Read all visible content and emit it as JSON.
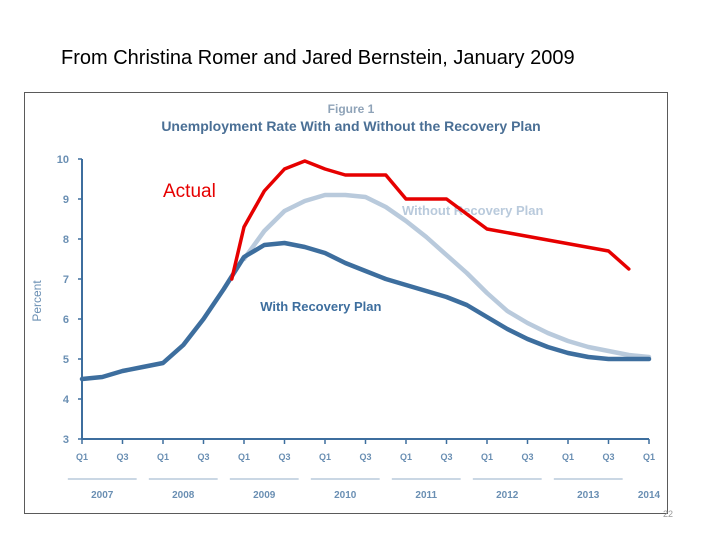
{
  "slide": {
    "title": "From Christina Romer and Jared Bernstein, January 2009",
    "page_number": "22"
  },
  "chart_data": {
    "type": "line",
    "figure_label": "Figure 1",
    "title": "Unemployment Rate With and Without the Recovery Plan",
    "ylabel": "Percent",
    "xlabel": "",
    "ylim": [
      3,
      10
    ],
    "yticks": [
      3,
      4,
      5,
      6,
      7,
      8,
      9,
      10
    ],
    "xlim": [
      2007.0,
      2014.0
    ],
    "quarter_ticks": [
      {
        "x": 2007.0,
        "label": "Q1"
      },
      {
        "x": 2007.5,
        "label": "Q3"
      },
      {
        "x": 2008.0,
        "label": "Q1"
      },
      {
        "x": 2008.5,
        "label": "Q3"
      },
      {
        "x": 2009.0,
        "label": "Q1"
      },
      {
        "x": 2009.5,
        "label": "Q3"
      },
      {
        "x": 2010.0,
        "label": "Q1"
      },
      {
        "x": 2010.5,
        "label": "Q3"
      },
      {
        "x": 2011.0,
        "label": "Q1"
      },
      {
        "x": 2011.5,
        "label": "Q3"
      },
      {
        "x": 2012.0,
        "label": "Q1"
      },
      {
        "x": 2012.5,
        "label": "Q3"
      },
      {
        "x": 2013.0,
        "label": "Q1"
      },
      {
        "x": 2013.5,
        "label": "Q3"
      },
      {
        "x": 2014.0,
        "label": "Q1"
      }
    ],
    "year_labels": [
      {
        "x": 2007.25,
        "label": "2007"
      },
      {
        "x": 2008.25,
        "label": "2008"
      },
      {
        "x": 2009.25,
        "label": "2009"
      },
      {
        "x": 2010.25,
        "label": "2010"
      },
      {
        "x": 2011.25,
        "label": "2011"
      },
      {
        "x": 2012.25,
        "label": "2012"
      },
      {
        "x": 2013.25,
        "label": "2013"
      },
      {
        "x": 2014.0,
        "label": "2014"
      }
    ],
    "series": [
      {
        "name": "Without Recovery Plan",
        "color": "#b9cadc",
        "label_text": "Without Recovery Plan",
        "label_at": {
          "x": 2010.95,
          "y": 8.6
        },
        "points": [
          [
            2009.0,
            7.5
          ],
          [
            2009.25,
            8.2
          ],
          [
            2009.5,
            8.7
          ],
          [
            2009.75,
            8.95
          ],
          [
            2010.0,
            9.1
          ],
          [
            2010.25,
            9.1
          ],
          [
            2010.5,
            9.05
          ],
          [
            2010.75,
            8.8
          ],
          [
            2011.0,
            8.45
          ],
          [
            2011.25,
            8.05
          ],
          [
            2011.5,
            7.6
          ],
          [
            2011.75,
            7.15
          ],
          [
            2012.0,
            6.65
          ],
          [
            2012.25,
            6.2
          ],
          [
            2012.5,
            5.9
          ],
          [
            2012.75,
            5.65
          ],
          [
            2013.0,
            5.45
          ],
          [
            2013.25,
            5.3
          ],
          [
            2013.5,
            5.2
          ],
          [
            2013.75,
            5.1
          ],
          [
            2014.0,
            5.05
          ]
        ]
      },
      {
        "name": "With Recovery Plan",
        "color": "#3d6e9e",
        "label_text": "With Recovery Plan",
        "label_at": {
          "x": 2009.2,
          "y": 6.2
        },
        "points": [
          [
            2007.0,
            4.5
          ],
          [
            2007.25,
            4.55
          ],
          [
            2007.5,
            4.7
          ],
          [
            2007.75,
            4.8
          ],
          [
            2008.0,
            4.9
          ],
          [
            2008.25,
            5.35
          ],
          [
            2008.5,
            6.0
          ],
          [
            2008.75,
            6.75
          ],
          [
            2009.0,
            7.55
          ],
          [
            2009.25,
            7.85
          ],
          [
            2009.5,
            7.9
          ],
          [
            2009.75,
            7.8
          ],
          [
            2010.0,
            7.65
          ],
          [
            2010.25,
            7.4
          ],
          [
            2010.5,
            7.2
          ],
          [
            2010.75,
            7.0
          ],
          [
            2011.0,
            6.85
          ],
          [
            2011.25,
            6.7
          ],
          [
            2011.5,
            6.55
          ],
          [
            2011.75,
            6.35
          ],
          [
            2012.0,
            6.05
          ],
          [
            2012.25,
            5.75
          ],
          [
            2012.5,
            5.5
          ],
          [
            2012.75,
            5.3
          ],
          [
            2013.0,
            5.15
          ],
          [
            2013.25,
            5.05
          ],
          [
            2013.5,
            5.0
          ],
          [
            2013.75,
            5.0
          ],
          [
            2014.0,
            5.0
          ]
        ]
      },
      {
        "name": "Actual",
        "color": "#e60000",
        "label_text": "Actual",
        "label_at": {
          "x": 2008.0,
          "y": 9.05
        },
        "points": [
          [
            2008.85,
            7.0
          ],
          [
            2009.0,
            8.3
          ],
          [
            2009.25,
            9.2
          ],
          [
            2009.5,
            9.75
          ],
          [
            2009.75,
            9.95
          ],
          [
            2010.0,
            9.75
          ],
          [
            2010.25,
            9.6
          ],
          [
            2010.75,
            9.6
          ],
          [
            2011.0,
            9.0
          ],
          [
            2011.5,
            9.0
          ],
          [
            2012.0,
            8.25
          ],
          [
            2013.5,
            7.7
          ],
          [
            2013.75,
            7.25
          ]
        ]
      }
    ]
  }
}
